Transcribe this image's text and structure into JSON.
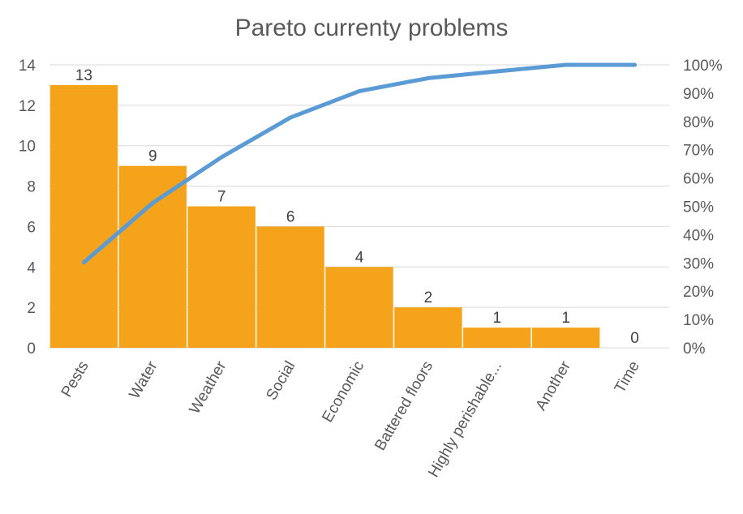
{
  "chart_data": {
    "type": "bar",
    "title": "Pareto currenty problems",
    "categories": [
      "Pests",
      "Water",
      "Weather",
      "Social",
      "Economic",
      "Battered floors",
      "Highly perishable...",
      "Another",
      "Time"
    ],
    "series": [
      {
        "type": "bar",
        "values": [
          13,
          9,
          7,
          6,
          4,
          2,
          1,
          1,
          0
        ],
        "color": "#F5A31A",
        "data_labels": [
          "13",
          "9",
          "7",
          "6",
          "4",
          "2",
          "1",
          "1",
          "0"
        ]
      },
      {
        "type": "line",
        "axis": "secondary",
        "values": [
          30.2,
          51.2,
          67.4,
          81.4,
          90.7,
          95.3,
          97.7,
          100,
          100
        ],
        "color": "#5B9BD5"
      }
    ],
    "y_axis": {
      "min": 0,
      "max": 14,
      "ticks": [
        "0",
        "2",
        "4",
        "6",
        "8",
        "10",
        "12",
        "14"
      ]
    },
    "y2_axis": {
      "min": 0,
      "max": 100,
      "ticks": [
        "0%",
        "10%",
        "20%",
        "30%",
        "40%",
        "50%",
        "60%",
        "70%",
        "80%",
        "90%",
        "100%"
      ]
    },
    "grid": true,
    "legend": "none"
  }
}
